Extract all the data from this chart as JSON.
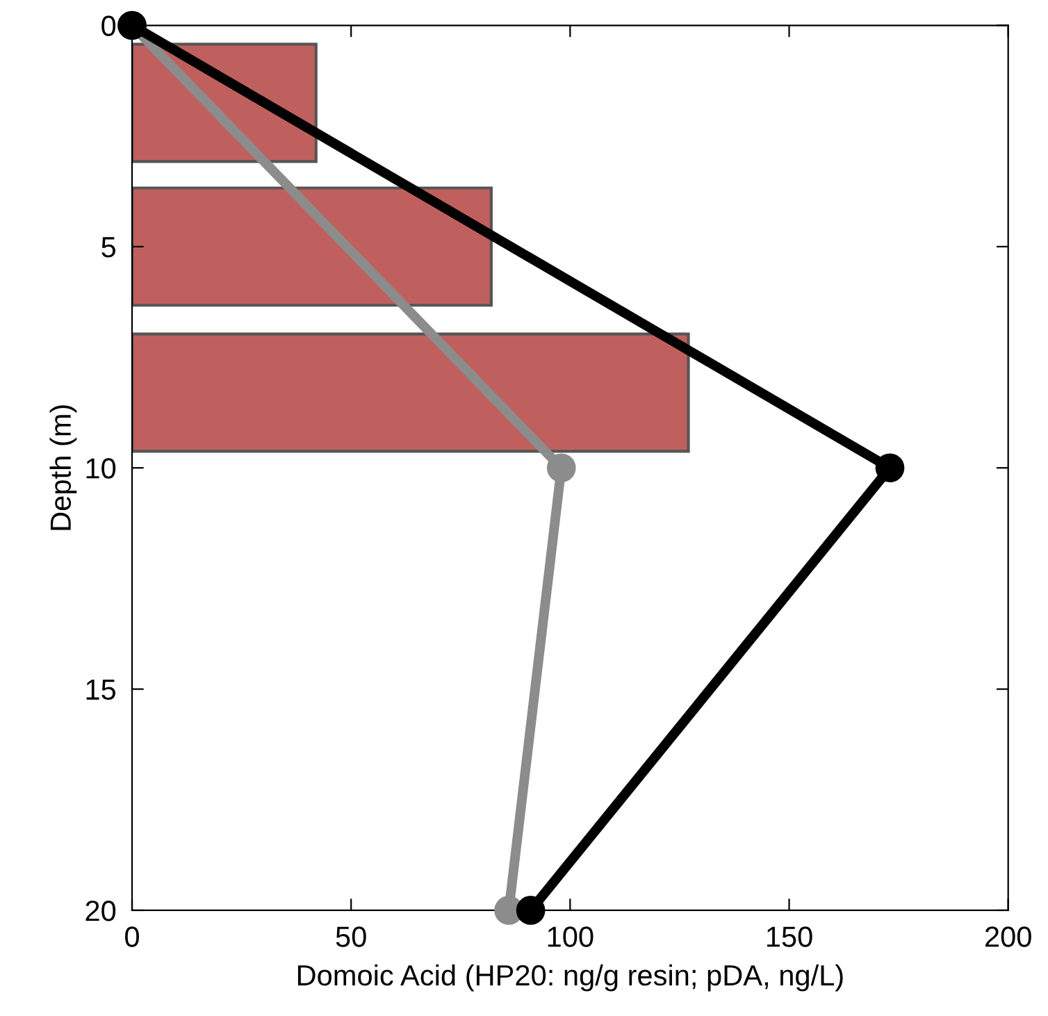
{
  "chart_data": {
    "type": "bar",
    "orientation": "horizontal",
    "xlabel": "Domoic Acid (HP20: ng/g resin; pDA, ng/L)",
    "ylabel": "Depth (m)",
    "xlim": [
      0,
      200
    ],
    "xticks": [
      0,
      50,
      100,
      150,
      200
    ],
    "ylim": [
      20,
      0
    ],
    "yticks": [
      0,
      5,
      10,
      15,
      20
    ],
    "grid": false,
    "legend": false,
    "series": [
      {
        "color": "#c0605e",
        "x": [
          1.75,
          5.0,
          8.3
        ],
        "values": [
          42,
          82,
          127
        ]
      },
      {
        "type": "line",
        "color": "#000000",
        "marker": "circle",
        "line_style": "solid",
        "x": [
          0,
          10,
          20
        ],
        "values": [
          0,
          173,
          91
        ]
      },
      {
        "type": "line",
        "color": "#8c8c8c",
        "marker": "circle",
        "line_style": "solid",
        "x": [
          0,
          10,
          20
        ],
        "values": [
          0,
          98,
          86
        ]
      }
    ]
  }
}
